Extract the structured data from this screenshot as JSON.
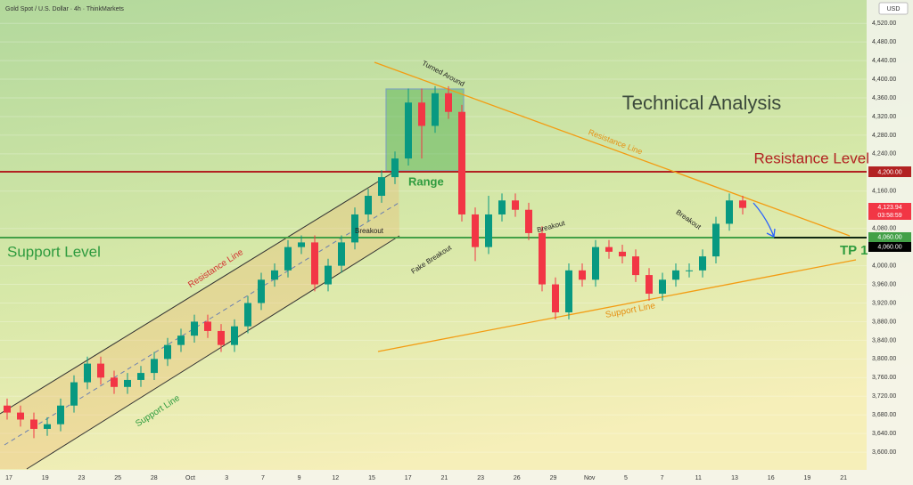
{
  "chart_data": {
    "type": "candlestick",
    "title": "Gold Spot / U.S. Dollar · 4h · ThinkMarkets",
    "currency": "USD",
    "up_color": "#089981",
    "down_color": "#f23645",
    "open": [
      3700,
      3685,
      3670,
      3650,
      3660,
      3700,
      3750,
      3790,
      3760,
      3740,
      3755,
      3770,
      3800,
      3830,
      3850,
      3880,
      3860,
      3830,
      3870,
      3920,
      3970,
      3990,
      4040,
      4050,
      3960,
      4000,
      4050,
      4110,
      4150,
      4190,
      4230,
      4350,
      4300,
      4370,
      4330,
      4110,
      4040,
      4110,
      4140,
      4120,
      4070,
      3960,
      3900,
      3990,
      3970,
      4040,
      4030,
      4020,
      3980,
      3940,
      3970,
      3990,
      3990,
      4020,
      4090,
      4140
    ],
    "high": [
      3715,
      3700,
      3685,
      3675,
      3715,
      3765,
      3805,
      3805,
      3775,
      3770,
      3785,
      3815,
      3845,
      3865,
      3895,
      3895,
      3875,
      3885,
      3935,
      3985,
      4005,
      4055,
      4065,
      4065,
      4015,
      4065,
      4125,
      4165,
      4205,
      4245,
      4380,
      4380,
      4385,
      4385,
      4345,
      4125,
      4150,
      4155,
      4155,
      4135,
      4085,
      3975,
      4005,
      4005,
      4055,
      4055,
      4045,
      4035,
      3995,
      3985,
      4005,
      4005,
      4035,
      4105,
      4155,
      4150
    ],
    "low": [
      3670,
      3655,
      3630,
      3635,
      3645,
      3685,
      3735,
      3745,
      3725,
      3725,
      3740,
      3755,
      3785,
      3815,
      3835,
      3845,
      3815,
      3815,
      3855,
      3905,
      3955,
      3975,
      4025,
      3945,
      3945,
      3985,
      4035,
      4095,
      4135,
      4175,
      4215,
      4230,
      4285,
      4315,
      4095,
      4010,
      4025,
      4095,
      4105,
      4055,
      3945,
      3885,
      3885,
      3955,
      3955,
      4015,
      4005,
      3965,
      3925,
      3925,
      3955,
      3975,
      3975,
      4005,
      4075,
      4110
    ],
    "close": [
      3685,
      3670,
      3650,
      3660,
      3700,
      3750,
      3790,
      3760,
      3740,
      3755,
      3770,
      3800,
      3830,
      3850,
      3880,
      3860,
      3830,
      3870,
      3920,
      3970,
      3990,
      4040,
      4050,
      3960,
      4000,
      4050,
      4110,
      4150,
      4190,
      4230,
      4350,
      4300,
      4370,
      4330,
      4110,
      4040,
      4110,
      4140,
      4120,
      4070,
      3960,
      3900,
      3990,
      3970,
      4040,
      4030,
      4020,
      3980,
      3940,
      3970,
      3990,
      3990,
      4020,
      4090,
      4140,
      4124
    ],
    "ylim": [
      3564,
      4570
    ],
    "yticks": [
      {
        "value": 3600,
        "label": "3,600.00"
      },
      {
        "value": 3640,
        "label": "3,640.00"
      },
      {
        "value": 3680,
        "label": "3,680.00"
      },
      {
        "value": 3720,
        "label": "3,720.00"
      },
      {
        "value": 3760,
        "label": "3,760.00"
      },
      {
        "value": 3800,
        "label": "3,800.00"
      },
      {
        "value": 3840,
        "label": "3,840.00"
      },
      {
        "value": 3880,
        "label": "3,880.00"
      },
      {
        "value": 3920,
        "label": "3,920.00"
      },
      {
        "value": 3960,
        "label": "3,960.00"
      },
      {
        "value": 4000,
        "label": "4,000.00"
      },
      {
        "value": 4080,
        "label": "4,080.00"
      },
      {
        "value": 4160,
        "label": "4,160.00"
      },
      {
        "value": 4240,
        "label": "4,240.00"
      },
      {
        "value": 4280,
        "label": "4,280.00"
      },
      {
        "value": 4320,
        "label": "4,320.00"
      },
      {
        "value": 4360,
        "label": "4,360.00"
      },
      {
        "value": 4400,
        "label": "4,400.00"
      },
      {
        "value": 4440,
        "label": "4,440.00"
      },
      {
        "value": 4480,
        "label": "4,480.00"
      },
      {
        "value": 4520,
        "label": "4,520.00"
      }
    ],
    "x_labels": [
      "17",
      "19",
      "23",
      "25",
      "28",
      "Oct",
      "3",
      "7",
      "9",
      "12",
      "15",
      "17",
      "21",
      "23",
      "26",
      "29",
      "Nov",
      "5",
      "7",
      "11",
      "13",
      "16",
      "19",
      "21"
    ],
    "price_labels": {
      "resistance": "4,200.00",
      "last": "4,123.94",
      "countdown": "03:58:59",
      "support": "4,060.00",
      "target": "4,060.00"
    },
    "annotations": {
      "heading": "Technical Analysis",
      "resistance_level": "Resistance Level",
      "support_level": "Support Level",
      "tp": "TP 1",
      "range": "Range",
      "turned_around": "Turned Around",
      "channel_resistance": "Resistance Line",
      "channel_support": "Support Line",
      "triangle_resistance": "Resistance Line",
      "triangle_support": "Support Line",
      "breakout_1": "Breakout",
      "fake_breakout": "Fake Breakout",
      "breakout_2": "Breakout",
      "breakout_3": "Breakout"
    }
  }
}
